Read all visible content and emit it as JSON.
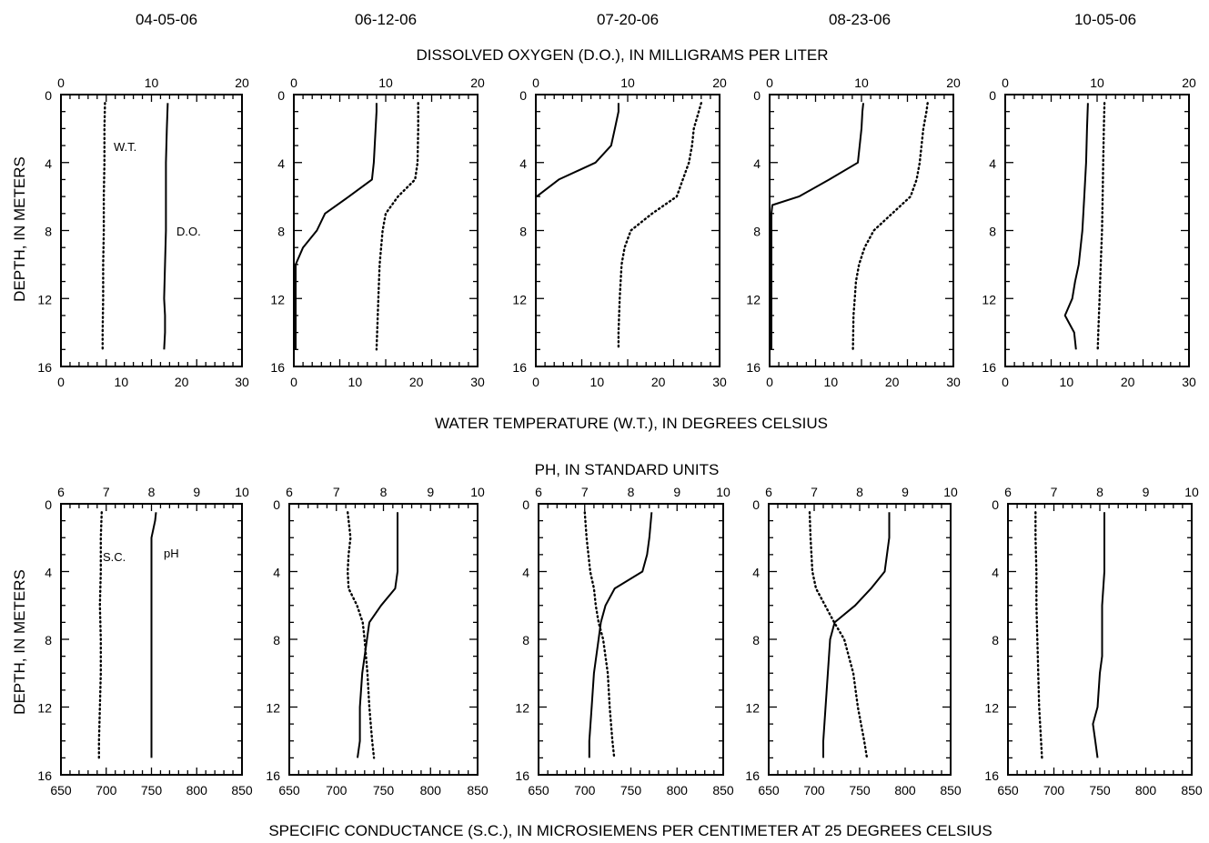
{
  "dates": [
    "04-05-06",
    "06-12-06",
    "07-20-06",
    "08-23-06",
    "10-05-06"
  ],
  "labels": {
    "do_axis": "DISSOLVED OXYGEN (D.O.), IN MILLIGRAMS PER LITER",
    "wt_axis": "WATER TEMPERATURE (W.T.), IN DEGREES CELSIUS",
    "ph_axis": "PH, IN STANDARD UNITS",
    "sc_axis": "SPECIFIC CONDUCTANCE (S.C.), IN MICROSIEMENS PER CENTIMETER AT 25 DEGREES CELSIUS",
    "depth_axis": "DEPTH, IN METERS"
  },
  "legend_labels": {
    "wt": "W.T.",
    "do": "D.O.",
    "sc": "S.C.",
    "ph": "pH"
  },
  "colors": {
    "line": "#000000",
    "background": "#ffffff"
  },
  "chart_data": [
    {
      "type": "line",
      "row": "top",
      "y_axis": {
        "label": "DEPTH, IN METERS",
        "range": [
          0,
          16
        ],
        "inverted": true,
        "ticks": [
          0,
          4,
          8,
          12,
          16
        ]
      },
      "x_top": {
        "label": "DISSOLVED OXYGEN (D.O.), IN MILLIGRAMS PER LITER",
        "range": [
          0,
          20
        ],
        "ticks": [
          0,
          10,
          20
        ]
      },
      "x_bottom": {
        "label": "WATER TEMPERATURE (W.T.), IN DEGREES CELSIUS",
        "range": [
          0,
          30
        ],
        "ticks": [
          0,
          10,
          20,
          30
        ]
      },
      "panels": [
        {
          "date": "04-05-06",
          "do": [
            [
              0.5,
              11.8
            ],
            [
              2,
              11.7
            ],
            [
              4,
              11.6
            ],
            [
              6,
              11.6
            ],
            [
              8,
              11.6
            ],
            [
              10,
              11.5
            ],
            [
              12,
              11.4
            ],
            [
              13,
              11.5
            ],
            [
              14,
              11.5
            ],
            [
              15,
              11.4
            ]
          ],
          "wt": [
            [
              0.5,
              7.3
            ],
            [
              2,
              7.2
            ],
            [
              4,
              7.2
            ],
            [
              6,
              7.1
            ],
            [
              8,
              7.1
            ],
            [
              10,
              7.0
            ],
            [
              12,
              7.0
            ],
            [
              14,
              6.9
            ],
            [
              15,
              6.9
            ]
          ]
        },
        {
          "date": "06-12-06",
          "do": [
            [
              0.5,
              9.0
            ],
            [
              1,
              9.0
            ],
            [
              3,
              8.8
            ],
            [
              4,
              8.7
            ],
            [
              5,
              8.5
            ],
            [
              6,
              6.0
            ],
            [
              7,
              3.4
            ],
            [
              8,
              2.5
            ],
            [
              9,
              1.0
            ],
            [
              10,
              0.2
            ],
            [
              11,
              0.2
            ],
            [
              12,
              0.2
            ],
            [
              13,
              0.2
            ],
            [
              14,
              0.2
            ],
            [
              15,
              0.2
            ]
          ],
          "wt": [
            [
              0.5,
              20.3
            ],
            [
              2,
              20.3
            ],
            [
              4,
              20.2
            ],
            [
              5,
              19.8
            ],
            [
              6,
              17.0
            ],
            [
              7,
              15.0
            ],
            [
              8,
              14.5
            ],
            [
              10,
              14.0
            ],
            [
              12,
              13.8
            ],
            [
              14,
              13.6
            ],
            [
              15,
              13.5
            ]
          ]
        },
        {
          "date": "07-20-06",
          "do": [
            [
              0.5,
              9.0
            ],
            [
              1,
              9.0
            ],
            [
              2,
              8.6
            ],
            [
              3,
              8.2
            ],
            [
              4,
              6.5
            ],
            [
              5,
              2.5
            ],
            [
              6,
              0.1
            ]
          ],
          "wt": [
            [
              0.5,
              27.0
            ],
            [
              1,
              26.6
            ],
            [
              2,
              25.8
            ],
            [
              3,
              25.5
            ],
            [
              4,
              25.0
            ],
            [
              5,
              24.0
            ],
            [
              6,
              23.0
            ],
            [
              7,
              19.0
            ],
            [
              8,
              15.5
            ],
            [
              9,
              14.5
            ],
            [
              10,
              14.0
            ],
            [
              12,
              13.7
            ],
            [
              14,
              13.5
            ],
            [
              15,
              13.5
            ]
          ]
        },
        {
          "date": "08-23-06",
          "do": [
            [
              0.5,
              10.2
            ],
            [
              1,
              10.1
            ],
            [
              2,
              10.0
            ],
            [
              3,
              9.8
            ],
            [
              4,
              9.6
            ],
            [
              5,
              6.5
            ],
            [
              6,
              3.2
            ],
            [
              6.5,
              0.3
            ],
            [
              7,
              0.2
            ],
            [
              8,
              0.2
            ],
            [
              10,
              0.2
            ],
            [
              12,
              0.2
            ],
            [
              14,
              0.2
            ],
            [
              15,
              0.2
            ]
          ],
          "wt": [
            [
              0.5,
              25.8
            ],
            [
              1,
              25.6
            ],
            [
              2,
              25.1
            ],
            [
              3,
              24.8
            ],
            [
              4,
              24.5
            ],
            [
              5,
              24.0
            ],
            [
              6,
              23.0
            ],
            [
              7,
              20.0
            ],
            [
              8,
              17.0
            ],
            [
              9,
              15.5
            ],
            [
              10,
              14.6
            ],
            [
              11,
              14.1
            ],
            [
              12,
              13.9
            ],
            [
              13,
              13.7
            ],
            [
              15,
              13.6
            ]
          ]
        },
        {
          "date": "10-05-06",
          "do": [
            [
              0.5,
              9.0
            ],
            [
              2,
              8.9
            ],
            [
              4,
              8.8
            ],
            [
              6,
              8.6
            ],
            [
              8,
              8.4
            ],
            [
              10,
              8.0
            ],
            [
              11,
              7.6
            ],
            [
              12,
              7.3
            ],
            [
              13,
              6.5
            ],
            [
              14,
              7.5
            ],
            [
              15,
              7.7
            ]
          ],
          "wt": [
            [
              0.5,
              16.2
            ],
            [
              2,
              16.1
            ],
            [
              4,
              16.0
            ],
            [
              6,
              15.9
            ],
            [
              8,
              15.8
            ],
            [
              10,
              15.6
            ],
            [
              12,
              15.4
            ],
            [
              14,
              15.2
            ],
            [
              15,
              15.1
            ]
          ]
        }
      ]
    },
    {
      "type": "line",
      "row": "bottom",
      "y_axis": {
        "label": "DEPTH, IN METERS",
        "range": [
          0,
          16
        ],
        "inverted": true,
        "ticks": [
          0,
          4,
          8,
          12,
          16
        ]
      },
      "x_top": {
        "label": "PH, IN STANDARD UNITS",
        "range": [
          6,
          10
        ],
        "ticks": [
          6,
          7,
          8,
          9,
          10
        ]
      },
      "x_bottom": {
        "label": "SPECIFIC CONDUCTANCE (S.C.), IN MICROSIEMENS PER CENTIMETER AT 25 DEGREES CELSIUS",
        "range": [
          650,
          850
        ],
        "ticks": [
          650,
          700,
          750,
          800,
          850
        ]
      },
      "panels": [
        {
          "date": "04-05-06",
          "ph": [
            [
              0.5,
              8.1
            ],
            [
              1,
              8.08
            ],
            [
              2,
              8.0
            ],
            [
              4,
              8.0
            ],
            [
              6,
              8.0
            ],
            [
              8,
              8.0
            ],
            [
              10,
              8.0
            ],
            [
              12,
              8.0
            ],
            [
              14,
              8.0
            ],
            [
              15,
              8.0
            ]
          ],
          "sc": [
            [
              0.5,
              695
            ],
            [
              2,
              694
            ],
            [
              4,
              694
            ],
            [
              6,
              693
            ],
            [
              8,
              694
            ],
            [
              10,
              694
            ],
            [
              12,
              693
            ],
            [
              14,
              692
            ],
            [
              15,
              692
            ]
          ]
        },
        {
          "date": "06-12-06",
          "ph": [
            [
              0.5,
              8.3
            ],
            [
              1,
              8.3
            ],
            [
              2,
              8.3
            ],
            [
              3,
              8.3
            ],
            [
              4,
              8.3
            ],
            [
              5,
              8.25
            ],
            [
              6,
              7.95
            ],
            [
              7,
              7.7
            ],
            [
              8,
              7.65
            ],
            [
              10,
              7.55
            ],
            [
              12,
              7.5
            ],
            [
              14,
              7.5
            ],
            [
              15,
              7.45
            ]
          ],
          "sc": [
            [
              0.5,
              712
            ],
            [
              2,
              715
            ],
            [
              3,
              713
            ],
            [
              4,
              712
            ],
            [
              5,
              713
            ],
            [
              6,
              722
            ],
            [
              7,
              728
            ],
            [
              8,
              730
            ],
            [
              10,
              733
            ],
            [
              12,
              735
            ],
            [
              14,
              738
            ],
            [
              15,
              740
            ]
          ]
        },
        {
          "date": "07-20-06",
          "ph": [
            [
              0.5,
              8.45
            ],
            [
              2,
              8.4
            ],
            [
              3,
              8.35
            ],
            [
              4,
              8.25
            ],
            [
              5,
              7.65
            ],
            [
              6,
              7.45
            ],
            [
              7,
              7.35
            ],
            [
              8,
              7.3
            ],
            [
              10,
              7.2
            ],
            [
              12,
              7.15
            ],
            [
              14,
              7.1
            ],
            [
              15,
              7.1
            ]
          ],
          "sc": [
            [
              0.5,
              700
            ],
            [
              2,
              702
            ],
            [
              4,
              706
            ],
            [
              5,
              710
            ],
            [
              6,
              712
            ],
            [
              7,
              715
            ],
            [
              8,
              720
            ],
            [
              10,
              725
            ],
            [
              12,
              727
            ],
            [
              14,
              730
            ],
            [
              15,
              732
            ]
          ]
        },
        {
          "date": "08-23-06",
          "ph": [
            [
              0.5,
              8.65
            ],
            [
              2,
              8.65
            ],
            [
              3,
              8.6
            ],
            [
              4,
              8.55
            ],
            [
              5,
              8.25
            ],
            [
              6,
              7.9
            ],
            [
              7,
              7.45
            ],
            [
              8,
              7.35
            ],
            [
              10,
              7.3
            ],
            [
              12,
              7.25
            ],
            [
              14,
              7.2
            ],
            [
              15,
              7.2
            ]
          ],
          "sc": [
            [
              0.5,
              695
            ],
            [
              2,
              696
            ],
            [
              4,
              698
            ],
            [
              5,
              702
            ],
            [
              6,
              712
            ],
            [
              7,
              722
            ],
            [
              8,
              733
            ],
            [
              10,
              743
            ],
            [
              12,
              748
            ],
            [
              14,
              755
            ],
            [
              15,
              758
            ]
          ]
        },
        {
          "date": "10-05-06",
          "ph": [
            [
              0.5,
              8.1
            ],
            [
              2,
              8.1
            ],
            [
              4,
              8.1
            ],
            [
              6,
              8.05
            ],
            [
              8,
              8.05
            ],
            [
              9,
              8.05
            ],
            [
              10,
              8.0
            ],
            [
              12,
              7.95
            ],
            [
              13,
              7.85
            ],
            [
              14,
              7.9
            ],
            [
              15,
              7.95
            ]
          ],
          "sc": [
            [
              0.5,
              680
            ],
            [
              2,
              680
            ],
            [
              4,
              681
            ],
            [
              6,
              681
            ],
            [
              8,
              682
            ],
            [
              10,
              683
            ],
            [
              12,
              684
            ],
            [
              14,
              686
            ],
            [
              15,
              687
            ]
          ]
        }
      ]
    }
  ]
}
